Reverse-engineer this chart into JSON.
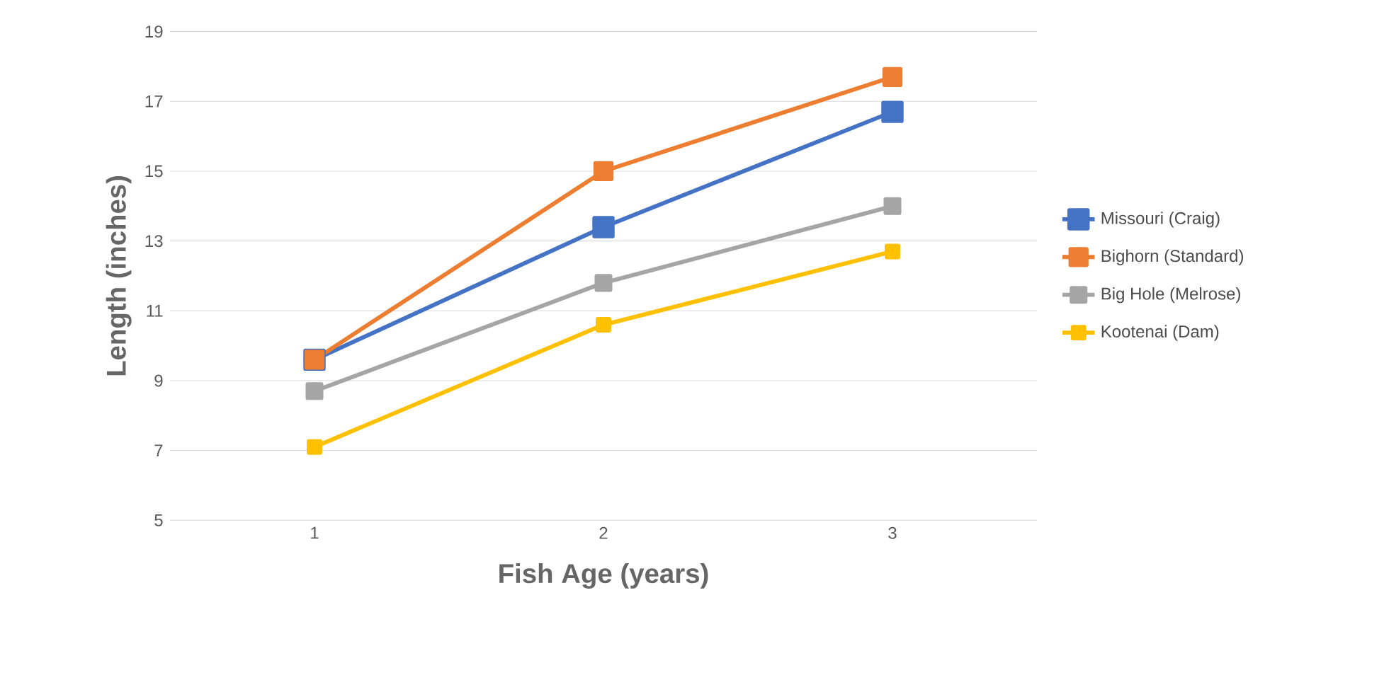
{
  "chart_data": {
    "type": "line",
    "xlabel": "Fish Age (years)",
    "ylabel": "Length (inches)",
    "categories": [
      "1",
      "2",
      "3"
    ],
    "ylim": [
      5,
      19
    ],
    "yticks": [
      5,
      7,
      9,
      11,
      13,
      15,
      17,
      19
    ],
    "grid": "y",
    "legend": "right",
    "marker": "square",
    "line_style": "solid",
    "series": [
      {
        "name": "Missouri (Craig)",
        "color": "#4472c4",
        "values": [
          9.6,
          13.4,
          16.7
        ]
      },
      {
        "name": "Bighorn (Standard)",
        "color": "#ed7d31",
        "values": [
          9.6,
          15.0,
          17.7
        ]
      },
      {
        "name": "Big Hole (Melrose)",
        "color": "#a5a5a5",
        "values": [
          8.7,
          11.8,
          14.0
        ]
      },
      {
        "name": "Kootenai (Dam)",
        "color": "#ffc000",
        "values": [
          7.1,
          10.6,
          12.7
        ]
      }
    ]
  }
}
